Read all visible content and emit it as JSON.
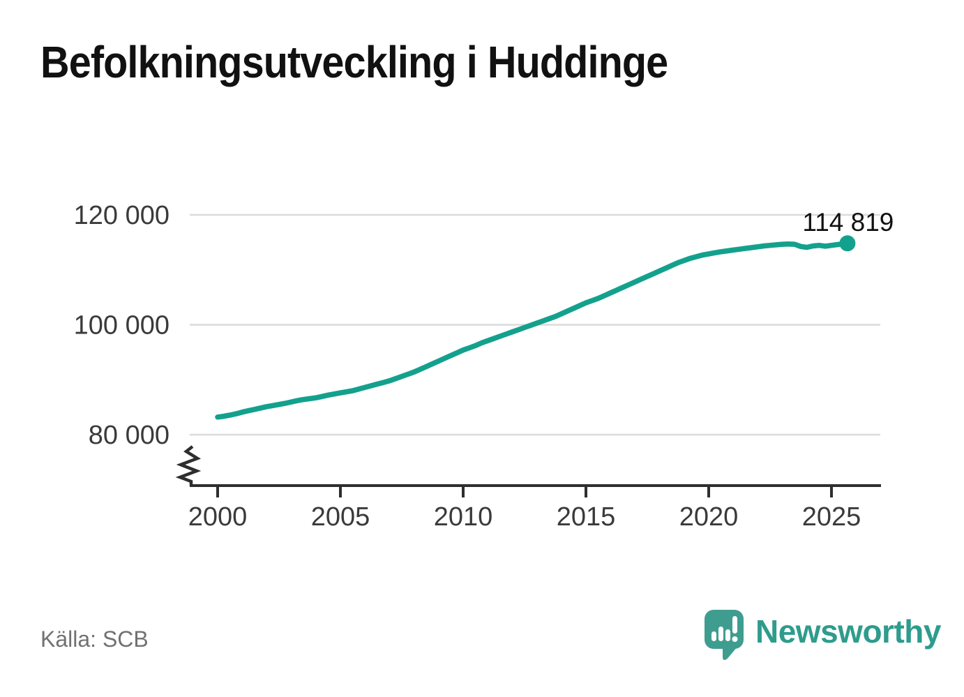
{
  "header": {
    "title": "Befolkningsutveckling i Huddinge"
  },
  "footer": {
    "source": "Källa: SCB",
    "brand": "Newsworthy"
  },
  "colors": {
    "background": "#FFFFFF",
    "accent": "#13A18D",
    "grid": "#DBDBDB",
    "axis": "#2E2E2E",
    "text": "#111111",
    "tick_text": "#3A3A3A",
    "muted_text": "#717171",
    "logo": "#3F9D90",
    "logo_bar": "#FFFFFF",
    "logo_text": "#2E9C8D"
  },
  "chart_data": {
    "type": "line",
    "title": "Befolkningsutveckling i Huddinge",
    "source": "Källa: SCB",
    "xlabel": "",
    "ylabel": "",
    "legend": "none",
    "grid": "horizontal",
    "y_axis_break": true,
    "ylim": [
      80000,
      120000
    ],
    "xticks": [
      "2000",
      "2005",
      "2010",
      "2015",
      "2020",
      "2025"
    ],
    "ytick_values": [
      80000,
      100000,
      120000
    ],
    "ytick_labels": [
      "80 000",
      "100 000",
      "120 000"
    ],
    "end_label": "114 819",
    "last_value": 114819,
    "x": [
      2000,
      2000.25,
      2000.5,
      2000.75,
      2001,
      2001.25,
      2001.5,
      2001.75,
      2002,
      2002.25,
      2002.5,
      2002.75,
      2003,
      2003.25,
      2003.5,
      2003.75,
      2004,
      2004.25,
      2004.5,
      2004.75,
      2005,
      2005.25,
      2005.5,
      2005.75,
      2006,
      2006.25,
      2006.5,
      2006.75,
      2007,
      2007.25,
      2007.5,
      2007.75,
      2008,
      2008.25,
      2008.5,
      2008.75,
      2009,
      2009.25,
      2009.5,
      2009.75,
      2010,
      2010.25,
      2010.5,
      2010.75,
      2011,
      2011.25,
      2011.5,
      2011.75,
      2012,
      2012.25,
      2012.5,
      2012.75,
      2013,
      2013.25,
      2013.5,
      2013.75,
      2014,
      2014.25,
      2014.5,
      2014.75,
      2015,
      2015.25,
      2015.5,
      2015.75,
      2016,
      2016.25,
      2016.5,
      2016.75,
      2017,
      2017.25,
      2017.5,
      2017.75,
      2018,
      2018.25,
      2018.5,
      2018.75,
      2019,
      2019.25,
      2019.5,
      2019.75,
      2020,
      2020.25,
      2020.5,
      2020.75,
      2021,
      2021.25,
      2021.5,
      2021.75,
      2022,
      2022.25,
      2022.5,
      2022.75,
      2023,
      2023.25,
      2023.5,
      2023.75,
      2024,
      2024.25,
      2024.5,
      2024.75,
      2025,
      2025.25,
      2025.65
    ],
    "values": [
      83200,
      83350,
      83550,
      83800,
      84100,
      84350,
      84600,
      84850,
      85100,
      85300,
      85500,
      85700,
      85950,
      86200,
      86400,
      86550,
      86700,
      86950,
      87200,
      87400,
      87600,
      87800,
      88000,
      88300,
      88600,
      88900,
      89200,
      89500,
      89800,
      90200,
      90600,
      91000,
      91400,
      91900,
      92400,
      92900,
      93400,
      93900,
      94400,
      94900,
      95400,
      95800,
      96200,
      96700,
      97100,
      97500,
      97900,
      98300,
      98700,
      99100,
      99500,
      99900,
      100300,
      100700,
      101100,
      101500,
      102000,
      102500,
      103000,
      103500,
      104000,
      104400,
      104800,
      105300,
      105800,
      106300,
      106800,
      107300,
      107800,
      108300,
      108800,
      109300,
      109800,
      110300,
      110800,
      111300,
      111700,
      112100,
      112400,
      112700,
      112900,
      113100,
      113300,
      113450,
      113600,
      113750,
      113900,
      114050,
      114200,
      114350,
      114450,
      114550,
      114650,
      114700,
      114650,
      114250,
      114100,
      114350,
      114450,
      114300,
      114450,
      114600,
      114819
    ]
  }
}
